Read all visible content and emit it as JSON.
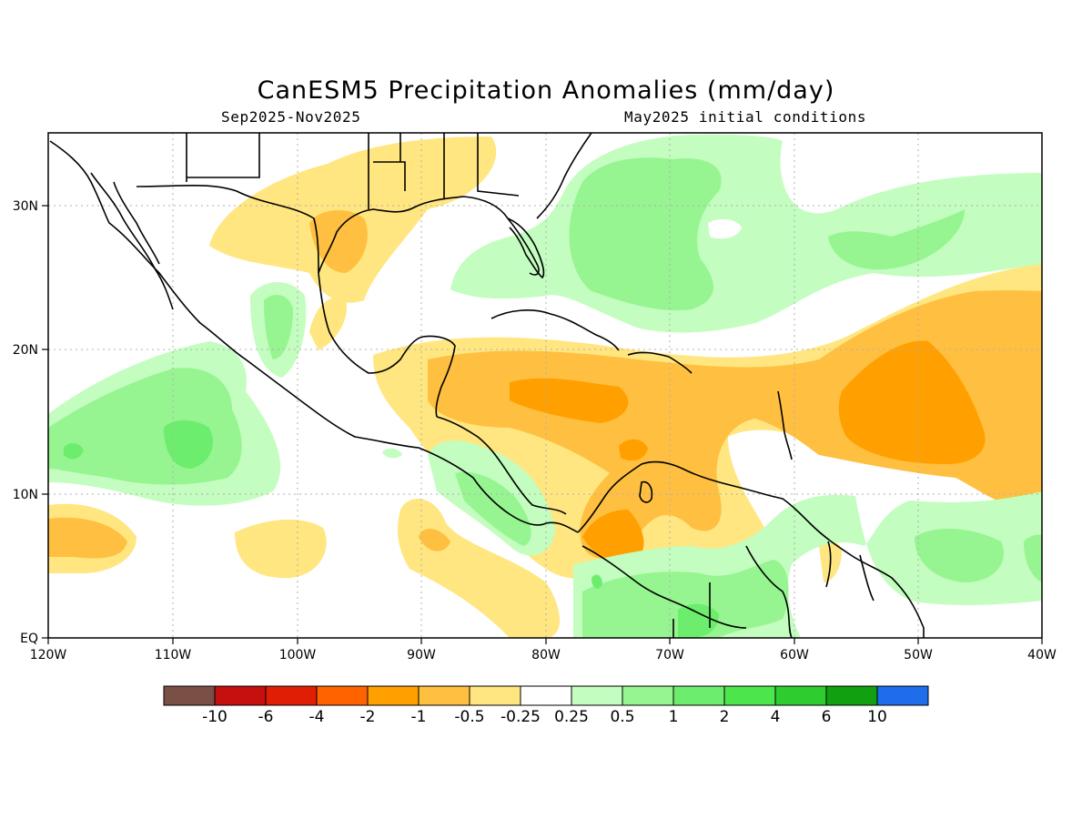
{
  "title": "CanESM5 Precipitation Anomalies (mm/day)",
  "subtitle_left": "Sep2025-Nov2025",
  "subtitle_right": "May2025 initial conditions",
  "axes": {
    "lon_ticks": [
      "120W",
      "110W",
      "100W",
      "90W",
      "80W",
      "70W",
      "60W",
      "50W",
      "40W"
    ],
    "lat_ticks": [
      "EQ",
      "10N",
      "20N",
      "30N"
    ]
  },
  "colorbar": {
    "colors": [
      "#7a5046",
      "#c60f0f",
      "#e01e06",
      "#ff6300",
      "#ff9f00",
      "#ffbf40",
      "#ffe680",
      "#ffffff",
      "#c3fdbf",
      "#96f590",
      "#6ded6d",
      "#4ce64c",
      "#2fcc2f",
      "#10a010",
      "#1e6eeb"
    ],
    "labels": [
      "-10",
      "-6",
      "-4",
      "-2",
      "-1",
      "-0.5",
      "-0.25",
      "0.25",
      "0.5",
      "1",
      "2",
      "4",
      "6",
      "10"
    ]
  }
}
